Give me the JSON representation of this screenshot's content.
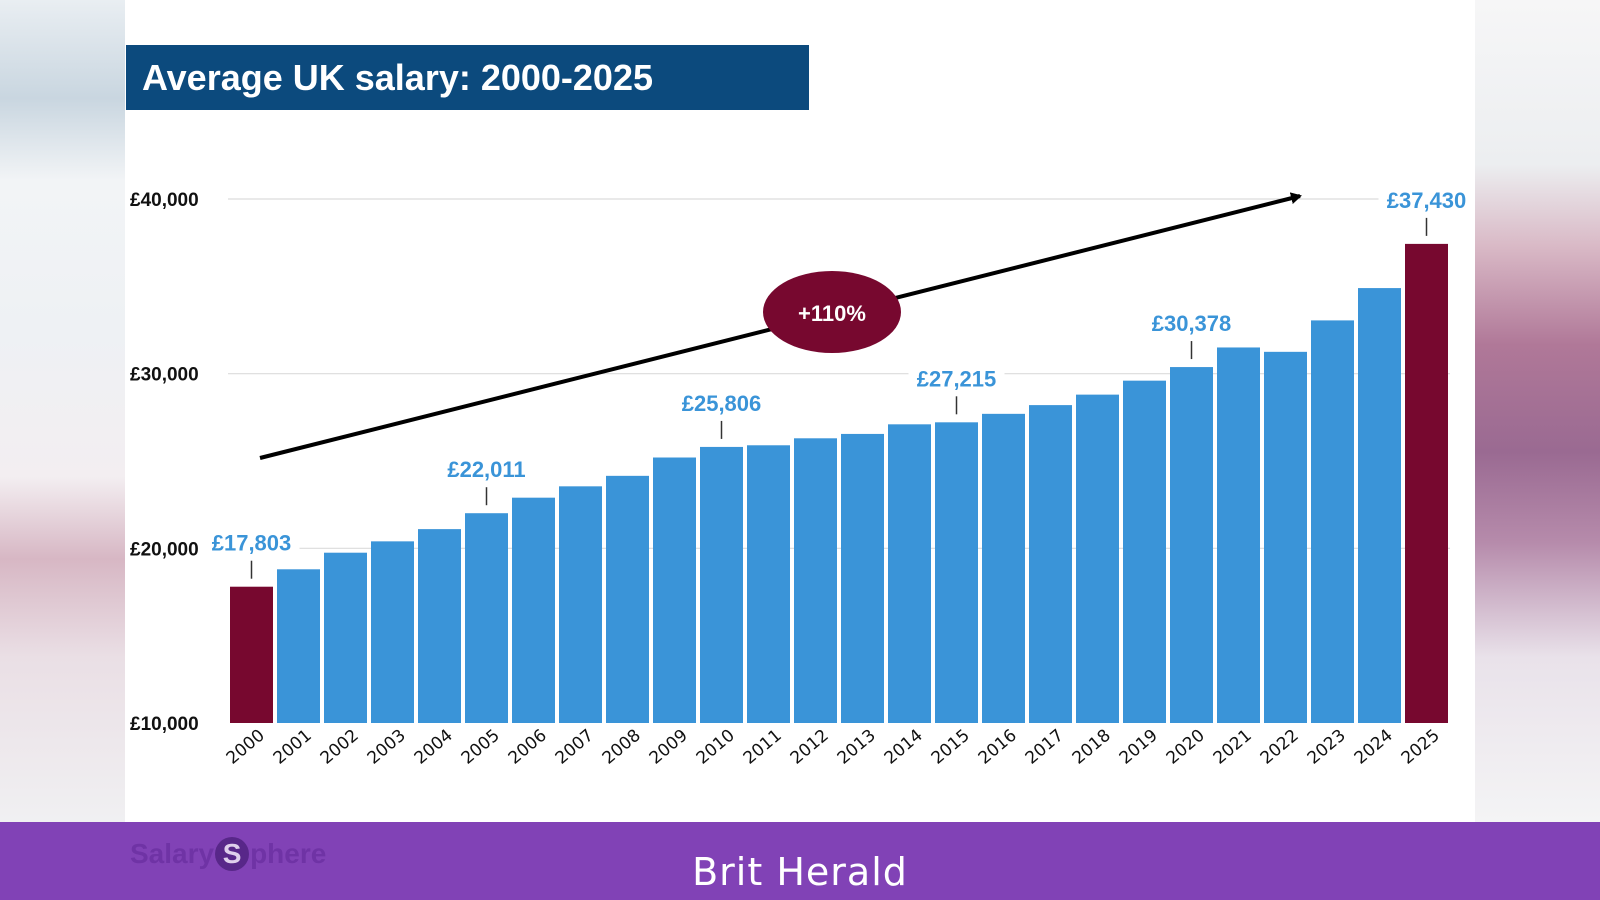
{
  "title": "Average UK salary: 2000-2025",
  "growth_badge": "+110%",
  "footer": {
    "text": "Brit Herald",
    "brand_part1": "Salary",
    "brand_mark": "S",
    "brand_part2": "phere"
  },
  "colors": {
    "bar": "#3a94d8",
    "highlight": "#77082f",
    "title_bg": "#0c4a7d",
    "label": "#3a94d8",
    "footer_bg": "#8142b6"
  },
  "chart_data": {
    "type": "bar",
    "title": "Average UK salary: 2000-2025",
    "xlabel": "",
    "ylabel": "",
    "ylim": [
      10000,
      40000
    ],
    "yticks": [
      {
        "value": 10000,
        "label": "£10,000"
      },
      {
        "value": 20000,
        "label": "£20,000"
      },
      {
        "value": 30000,
        "label": "£30,000"
      },
      {
        "value": 40000,
        "label": "£40,000"
      }
    ],
    "grid": true,
    "categories": [
      "2000",
      "2001",
      "2002",
      "2003",
      "2004",
      "2005",
      "2006",
      "2007",
      "2008",
      "2009",
      "2010",
      "2011",
      "2012",
      "2013",
      "2014",
      "2015",
      "2016",
      "2017",
      "2018",
      "2019",
      "2020",
      "2021",
      "2022",
      "2023",
      "2024",
      "2025"
    ],
    "values": [
      17803,
      18800,
      19750,
      20400,
      21100,
      22011,
      22900,
      23550,
      24150,
      25200,
      25806,
      25900,
      26300,
      26550,
      27100,
      27215,
      27700,
      28200,
      28800,
      29600,
      30378,
      31500,
      31250,
      33050,
      34900,
      37430
    ],
    "highlighted": [
      "2000",
      "2025"
    ],
    "data_labels": [
      {
        "category": "2000",
        "label": "£17,803"
      },
      {
        "category": "2005",
        "label": "£22,011"
      },
      {
        "category": "2010",
        "label": "£25,806"
      },
      {
        "category": "2015",
        "label": "£27,215"
      },
      {
        "category": "2020",
        "label": "£30,378"
      },
      {
        "category": "2025",
        "label": "£37,430"
      }
    ],
    "annotation": "+110%"
  }
}
